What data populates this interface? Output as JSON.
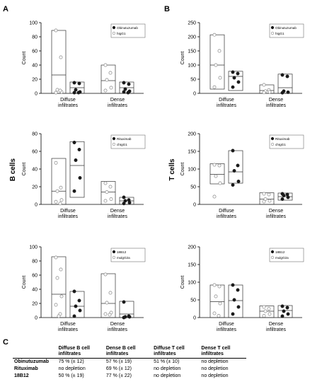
{
  "panel_labels": {
    "a": "A",
    "b": "B",
    "c": "C"
  },
  "row_labels": {
    "a": "B cells",
    "b": "T cells"
  },
  "colors": {
    "treated": "#1a1a1a",
    "control": "#bbbbbb",
    "box": "#333333",
    "axis": "#000000"
  },
  "chart_data": [
    {
      "type": "box-scatter",
      "ylabel": "Count",
      "ylim": [
        0,
        100
      ],
      "yticks": [
        0,
        20,
        40,
        60,
        80,
        100
      ],
      "categories": [
        "Diffuse\ninfiltrates",
        "Dense\ninfiltrates"
      ],
      "legend": {
        "position": "top-right",
        "entries": [
          "Obinutuzumab",
          "hIgG1"
        ]
      },
      "series": [
        {
          "name": "hIgG1",
          "marker": "open",
          "groups": [
            {
              "values": [
                89,
                51,
                5,
                2,
                1,
                4
              ],
              "box": [
                0,
                89
              ],
              "median": 26
            },
            {
              "values": [
                40,
                29,
                19,
                8,
                4
              ],
              "box": [
                0,
                40
              ],
              "median": 18
            }
          ]
        },
        {
          "name": "Obinutuzumab",
          "marker": "filled",
          "groups": [
            {
              "values": [
                15,
                14,
                5,
                2,
                1,
                1
              ],
              "box": [
                0,
                16
              ],
              "median": 8
            },
            {
              "values": [
                15,
                13,
                6,
                3,
                2,
                1
              ],
              "box": [
                0,
                16
              ],
              "median": 8
            }
          ]
        }
      ]
    },
    {
      "type": "box-scatter",
      "ylabel": "Count",
      "ylim": [
        0,
        250
      ],
      "yticks": [
        0,
        50,
        100,
        150,
        200,
        250
      ],
      "categories": [
        "Diffuse\ninfiltrates",
        "Dense\ninfiltrates"
      ],
      "legend": {
        "position": "top-right",
        "entries": [
          "Obinutuzumab",
          "hIgG1"
        ]
      },
      "series": [
        {
          "name": "hIgG1",
          "marker": "open",
          "groups": [
            {
              "values": [
                207,
                150,
                100,
                55,
                22
              ],
              "box": [
                15,
                207
              ],
              "median": 100
            },
            {
              "values": [
                30,
                12,
                8,
                5,
                3
              ],
              "box": [
                0,
                30
              ],
              "median": 10
            }
          ]
        },
        {
          "name": "Obinutuzumab",
          "marker": "filled",
          "groups": [
            {
              "values": [
                75,
                70,
                55,
                40,
                22
              ],
              "box": [
                10,
                78
              ],
              "median": 60
            },
            {
              "values": [
                65,
                60,
                8,
                4,
                2
              ],
              "box": [
                0,
                68
              ],
              "median": 20
            }
          ]
        }
      ]
    },
    {
      "type": "box-scatter",
      "ylabel": "Count",
      "ylim": [
        0,
        80
      ],
      "yticks": [
        0,
        20,
        40,
        60,
        80
      ],
      "categories": [
        "Diffuse\ninfiltrates",
        "Dense\ninfiltrates"
      ],
      "legend": {
        "position": "top-right",
        "entries": [
          "Rituximab",
          "chIgG1"
        ]
      },
      "series": [
        {
          "name": "chIgG1",
          "marker": "open",
          "groups": [
            {
              "values": [
                47,
                19,
                15,
                5,
                3,
                1
              ],
              "box": [
                0,
                52
              ],
              "median": 15
            },
            {
              "values": [
                24,
                20,
                14,
                6,
                4
              ],
              "box": [
                0,
                26
              ],
              "median": 14
            }
          ]
        },
        {
          "name": "Rituximab",
          "marker": "filled",
          "groups": [
            {
              "values": [
                70,
                62,
                50,
                30,
                15
              ],
              "box": [
                8,
                71
              ],
              "median": 44
            },
            {
              "values": [
                8,
                5,
                4,
                2,
                1
              ],
              "box": [
                0,
                8
              ],
              "median": 4
            }
          ]
        }
      ]
    },
    {
      "type": "box-scatter",
      "ylabel": "Count",
      "ylim": [
        0,
        200
      ],
      "yticks": [
        0,
        50,
        100,
        150,
        200
      ],
      "categories": [
        "Diffuse\ninfiltrates",
        "Dense\ninfiltrates"
      ],
      "legend": {
        "position": "top-right",
        "entries": [
          "Rituximab",
          "chIgG1"
        ]
      },
      "series": [
        {
          "name": "chIgG1",
          "marker": "open",
          "groups": [
            {
              "values": [
                112,
                110,
                80,
                60,
                22
              ],
              "box": [
                58,
                115
              ],
              "median": 85
            },
            {
              "values": [
                30,
                28,
                15,
                10,
                8
              ],
              "box": [
                0,
                33
              ],
              "median": 15
            }
          ]
        },
        {
          "name": "Rituximab",
          "marker": "filled",
          "groups": [
            {
              "values": [
                152,
                110,
                95,
                65,
                55
              ],
              "box": [
                60,
                152
              ],
              "median": 92
            },
            {
              "values": [
                30,
                28,
                25,
                20,
                15
              ],
              "box": [
                12,
                32
              ],
              "median": 22
            }
          ]
        }
      ]
    },
    {
      "type": "box-scatter",
      "ylabel": "Count",
      "ylim": [
        0,
        100
      ],
      "yticks": [
        0,
        20,
        40,
        60,
        80,
        100
      ],
      "categories": [
        "Diffuse\ninfiltrates",
        "Dense\ninfiltrates"
      ],
      "legend": {
        "position": "top-right",
        "entries": [
          "18B12",
          "mulgG2a"
        ]
      },
      "series": [
        {
          "name": "mulgG2a",
          "marker": "open",
          "groups": [
            {
              "values": [
                85,
                68,
                56,
                30,
                18,
                5,
                2
              ],
              "box": [
                0,
                86
              ],
              "median": 33
            },
            {
              "values": [
                61,
                35,
                21,
                7,
                5,
                4
              ],
              "box": [
                0,
                62
              ],
              "median": 20
            }
          ]
        },
        {
          "name": "18B12",
          "marker": "filled",
          "groups": [
            {
              "values": [
                37,
                24,
                16,
                10,
                2
              ],
              "box": [
                0,
                37
              ],
              "median": 16
            },
            {
              "values": [
                22,
                2,
                1,
                1,
                0
              ],
              "box": [
                0,
                23
              ],
              "median": 5
            }
          ]
        }
      ]
    },
    {
      "type": "box-scatter",
      "ylabel": "Count",
      "ylim": [
        0,
        200
      ],
      "yticks": [
        0,
        50,
        100,
        150,
        200
      ],
      "categories": [
        "Diffuse\ninfiltrates",
        "Dense\ninfiltrates"
      ],
      "legend": {
        "position": "top-right",
        "entries": [
          "18B12",
          "mulgG2a"
        ]
      },
      "series": [
        {
          "name": "mulgG2a",
          "marker": "open",
          "groups": [
            {
              "values": [
                92,
                88,
                60,
                40,
                12,
                5
              ],
              "box": [
                0,
                92
              ],
              "median": 45
            },
            {
              "values": [
                30,
                25,
                18,
                10,
                5
              ],
              "box": [
                0,
                33
              ],
              "median": 18
            }
          ]
        },
        {
          "name": "18B12",
          "marker": "filled",
          "groups": [
            {
              "values": [
                92,
                78,
                50,
                30,
                10
              ],
              "box": [
                0,
                92
              ],
              "median": 48
            },
            {
              "values": [
                32,
                28,
                18,
                10,
                4
              ],
              "box": [
                0,
                34
              ],
              "median": 20
            }
          ]
        }
      ]
    }
  ],
  "table": {
    "headers": [
      "",
      "Diffuse B cell infiltrates",
      "Dense B cell infiltrates",
      "Diffuse T cell infiltrates",
      "Dense T cell infiltrates"
    ],
    "rows": [
      [
        "Obinutuzumab",
        "75 % (± 12)",
        "57 % (± 19)",
        "51 % (± 10)",
        "no depletion"
      ],
      [
        "Rituximab",
        "no depletion",
        "69 % (± 12)",
        "no depletion",
        "no depletion"
      ],
      [
        "18B12",
        "50 % (± 19)",
        "77 % (± 22)",
        "no depletion",
        "no depletion"
      ]
    ]
  }
}
